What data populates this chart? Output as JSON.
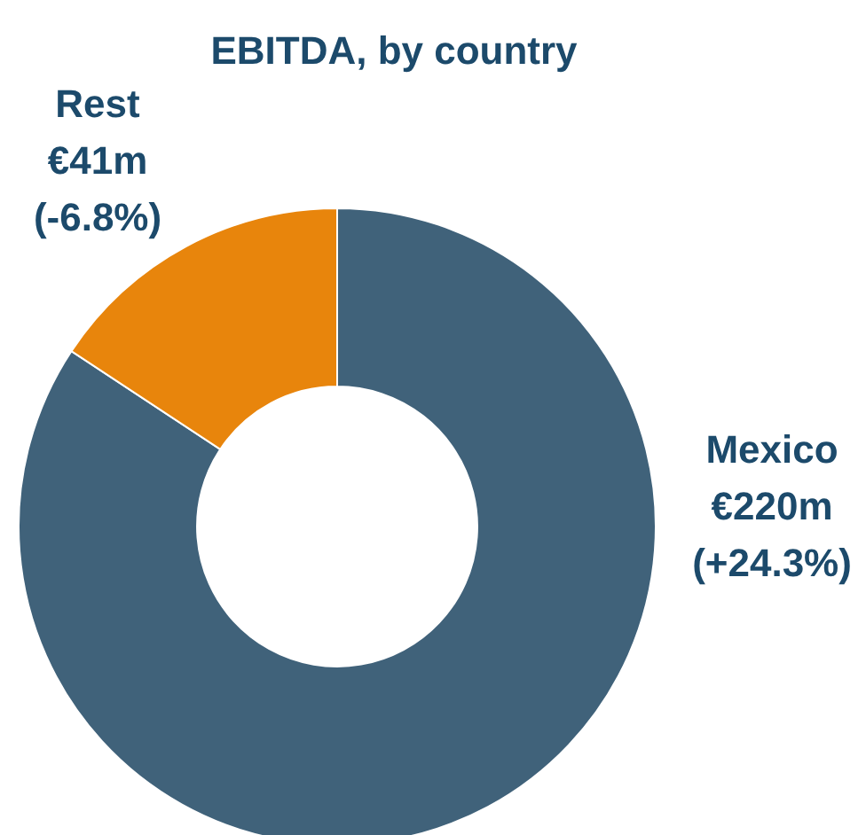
{
  "chart_data": {
    "type": "donut",
    "title": "EBITDA, by country",
    "categories": [
      "Mexico",
      "Rest"
    ],
    "values": [
      220,
      41
    ],
    "colors": [
      "#40627a",
      "#e8850c"
    ],
    "value_labels": [
      "€220m",
      "€41m"
    ],
    "annotations": [
      "(+24.3%)",
      "(-6.8%)"
    ],
    "legend": false
  }
}
